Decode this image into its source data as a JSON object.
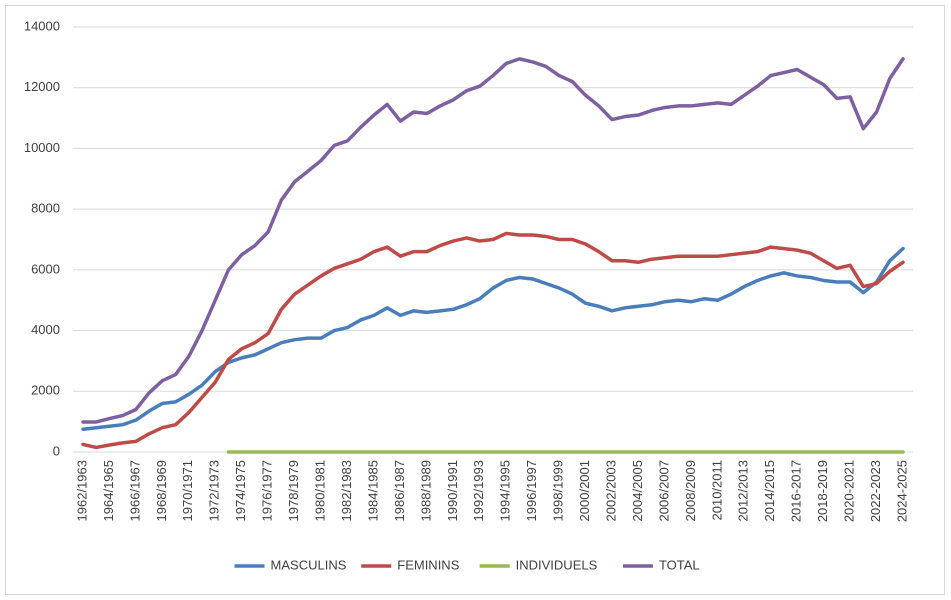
{
  "chart_data": {
    "type": "line",
    "categories": [
      "1962/1963",
      null,
      "1964/1965",
      null,
      "1966/1967",
      null,
      "1968/1969",
      null,
      "1970/1971",
      null,
      "1972/1973",
      null,
      "1974/1975",
      null,
      "1976/1977",
      null,
      "1978/1979",
      null,
      "1980/1981",
      null,
      "1982/1983",
      null,
      "1984/1985",
      null,
      "1986/1987",
      null,
      "1988/1989",
      null,
      "1990/1991",
      null,
      "1992/1993",
      null,
      "1994/1995",
      null,
      "1996/1997",
      null,
      "1998/1999",
      null,
      "2000/2001",
      null,
      "2002/2003",
      null,
      "2004/2005",
      null,
      "2006/2007",
      null,
      "2008/2009",
      null,
      "2010/2011",
      null,
      "2012/2013",
      null,
      "2014/2015",
      null,
      "2016-2017",
      null,
      "2018-2019",
      null,
      "2020-2021",
      null,
      "2022-2023",
      null,
      "2024-2025"
    ],
    "series": [
      {
        "name": "MASCULINS",
        "color": "#4a7ebb",
        "values": [
          750,
          800,
          850,
          900,
          1050,
          1350,
          1600,
          1650,
          1900,
          2200,
          2650,
          2950,
          3100,
          3200,
          3400,
          3600,
          3700,
          3750,
          3750,
          4000,
          4100,
          4350,
          4500,
          4750,
          4500,
          4650,
          4600,
          4650,
          4700,
          4850,
          5050,
          5400,
          5650,
          5750,
          5700,
          5550,
          5400,
          5200,
          4900,
          4800,
          4650,
          4750,
          4800,
          4850,
          4950,
          5000,
          4950,
          5050,
          5000,
          5200,
          5450,
          5650,
          5800,
          5900,
          5800,
          5750,
          5650,
          5600,
          5600,
          5250,
          5600,
          6300,
          6700
        ]
      },
      {
        "name": "FEMININS",
        "color": "#be4b48",
        "values": [
          250,
          150,
          230,
          300,
          350,
          600,
          800,
          900,
          1300,
          1800,
          2300,
          3050,
          3400,
          3600,
          3900,
          4700,
          5200,
          5500,
          5800,
          6050,
          6200,
          6350,
          6600,
          6750,
          6450,
          6600,
          6600,
          6800,
          6950,
          7050,
          6950,
          7000,
          7200,
          7150,
          7150,
          7100,
          7000,
          7000,
          6850,
          6600,
          6300,
          6300,
          6250,
          6350,
          6400,
          6450,
          6450,
          6450,
          6450,
          6500,
          6550,
          6600,
          6750,
          6700,
          6650,
          6550,
          6300,
          6050,
          6150,
          5450,
          5550,
          5950,
          6250
        ]
      },
      {
        "name": "INDIVIDUELS",
        "color": "#98b954",
        "values": [
          null,
          null,
          null,
          null,
          null,
          null,
          null,
          null,
          null,
          null,
          null,
          0,
          0,
          0,
          0,
          0,
          0,
          0,
          0,
          0,
          0,
          0,
          0,
          0,
          0,
          0,
          0,
          0,
          0,
          0,
          0,
          0,
          0,
          0,
          0,
          0,
          0,
          0,
          0,
          0,
          0,
          0,
          0,
          0,
          0,
          0,
          0,
          0,
          0,
          0,
          0,
          0,
          0,
          0,
          0,
          0,
          0,
          0,
          0,
          0,
          0,
          0,
          0
        ]
      },
      {
        "name": "TOTAL",
        "color": "#7d60a0",
        "values": [
          990,
          990,
          1100,
          1200,
          1400,
          1950,
          2350,
          2550,
          3150,
          4000,
          5000,
          6000,
          6500,
          6800,
          7250,
          8300,
          8900,
          9250,
          9600,
          10100,
          10250,
          10700,
          11100,
          11450,
          10900,
          11200,
          11150,
          11400,
          11600,
          11900,
          12050,
          12400,
          12800,
          12950,
          12850,
          12700,
          12400,
          12200,
          11750,
          11400,
          10950,
          11050,
          11100,
          11250,
          11350,
          11400,
          11400,
          11450,
          11500,
          11450,
          11750,
          12050,
          12400,
          12500,
          12600,
          12350,
          12100,
          11650,
          11700,
          10650,
          11200,
          12300,
          12950
        ]
      }
    ],
    "ylim": [
      0,
      14000
    ],
    "yticks": [
      0,
      2000,
      4000,
      6000,
      8000,
      10000,
      12000,
      14000
    ],
    "grid": true,
    "legend": "bottom"
  }
}
